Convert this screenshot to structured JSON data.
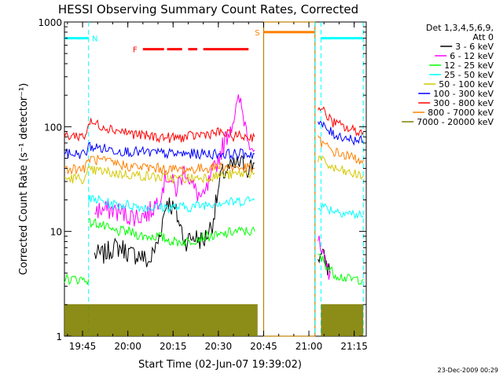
{
  "chart_data": {
    "type": "line",
    "title": "HESSI Observing Summary Count Rates, Corrected",
    "xlabel": "Start Time (02-Jun-07 19:39:02)",
    "ylabel": "Corrected Count Rate (s⁻¹ detector⁻¹)",
    "y_scale": "log",
    "ylim": [
      1,
      1000
    ],
    "xlim": [
      "19:39",
      "21:19"
    ],
    "x_ticks": [
      "19:45",
      "20:00",
      "20:15",
      "20:30",
      "20:45",
      "21:00",
      "21:15"
    ],
    "y_ticks": [
      "1",
      "10",
      "100",
      "1000"
    ],
    "grid": false,
    "legend_placement": "top-right",
    "legend_header": [
      "Det 1,3,4,5,6,9,",
      "Att 0"
    ],
    "footer_date": "23-Dec-2009 00:29",
    "series": [
      {
        "name": "3 - 6 keV",
        "color": "#000000",
        "segments": [
          {
            "x": [
              "19:49",
              "19:52",
              "19:55",
              "19:58",
              "20:01",
              "20:04",
              "20:07",
              "20:10",
              "20:13",
              "20:16",
              "20:19",
              "20:22",
              "20:25",
              "20:28",
              "20:31",
              "20:34",
              "20:37",
              "20:40",
              "20:42"
            ],
            "y": [
              6,
              6,
              7,
              7,
              6,
              6,
              5,
              8,
              20,
              15,
              8,
              9,
              8,
              12,
              35,
              40,
              45,
              40,
              45
            ]
          },
          {
            "x": [
              "21:03",
              "21:05",
              "21:07"
            ],
            "y": [
              6,
              5.5,
              4
            ]
          }
        ]
      },
      {
        "name": "6 - 12 keV",
        "color": "#ff00ff",
        "segments": [
          {
            "x": [
              "19:49",
              "19:52",
              "19:55",
              "19:58",
              "20:01",
              "20:04",
              "20:07",
              "20:10",
              "20:13",
              "20:16",
              "20:19",
              "20:22",
              "20:25",
              "20:28",
              "20:31",
              "20:34",
              "20:37",
              "20:40",
              "20:42"
            ],
            "y": [
              16,
              16,
              16,
              15,
              14,
              14,
              15,
              20,
              35,
              25,
              40,
              25,
              20,
              35,
              60,
              100,
              180,
              80,
              60
            ]
          },
          {
            "x": [
              "21:03",
              "21:05",
              "21:07"
            ],
            "y": [
              8,
              5,
              4
            ]
          }
        ]
      },
      {
        "name": "12 - 25 keV",
        "color": "#00ff00",
        "segments": [
          {
            "x": [
              "19:39",
              "19:47"
            ],
            "y": [
              3.5,
              3.5
            ]
          },
          {
            "x": [
              "19:47",
              "19:50",
              "19:55",
              "20:00",
              "20:05",
              "20:10",
              "20:15",
              "20:20",
              "20:25",
              "20:30",
              "20:35",
              "20:40",
              "20:42"
            ],
            "y": [
              12,
              12,
              10,
              10,
              9,
              9,
              8,
              8,
              9,
              9,
              10,
              10,
              10
            ]
          },
          {
            "x": [
              "21:03",
              "21:08",
              "21:13",
              "21:18"
            ],
            "y": [
              6,
              4,
              3.5,
              3.5
            ]
          }
        ]
      },
      {
        "name": "25 - 50 keV",
        "color": "#00ffff",
        "segments": [
          {
            "x": [
              "19:47",
              "19:50",
              "19:55",
              "20:00",
              "20:05",
              "20:10",
              "20:15",
              "20:20",
              "20:25",
              "20:30",
              "20:35",
              "20:40",
              "20:42"
            ],
            "y": [
              20,
              20,
              18,
              18,
              17,
              17,
              17,
              17,
              18,
              19,
              19,
              20,
              20
            ]
          },
          {
            "x": [
              "21:03",
              "21:08",
              "21:13",
              "21:18"
            ],
            "y": [
              18,
              16,
              15,
              14
            ]
          }
        ]
      },
      {
        "name": "50 - 100 keV",
        "color": "#d4c900",
        "segments": [
          {
            "x": [
              "19:39",
              "19:46",
              "19:47",
              "19:50",
              "19:55",
              "20:00",
              "20:05",
              "20:10",
              "20:15",
              "20:20",
              "20:25",
              "20:30",
              "20:35",
              "20:40",
              "20:42"
            ],
            "y": [
              32,
              32,
              38,
              38,
              36,
              35,
              34,
              33,
              32,
              32,
              33,
              34,
              35,
              36,
              36
            ]
          },
          {
            "x": [
              "21:03",
              "21:08",
              "21:13",
              "21:18"
            ],
            "y": [
              50,
              40,
              36,
              34
            ]
          }
        ]
      },
      {
        "name": "100 - 300 keV",
        "color": "#0000ff",
        "segments": [
          {
            "x": [
              "19:39",
              "19:46",
              "19:47",
              "19:50",
              "19:55",
              "20:00",
              "20:05",
              "20:10",
              "20:15",
              "20:20",
              "20:25",
              "20:30",
              "20:35",
              "20:40",
              "20:42"
            ],
            "y": [
              55,
              55,
              65,
              63,
              60,
              58,
              57,
              56,
              55,
              55,
              55,
              55,
              55,
              55,
              55
            ]
          },
          {
            "x": [
              "21:03",
              "21:08",
              "21:13",
              "21:18"
            ],
            "y": [
              110,
              85,
              78,
              72
            ]
          }
        ]
      },
      {
        "name": "300 - 800 keV",
        "color": "#ff0000",
        "segments": [
          {
            "x": [
              "19:39",
              "19:46",
              "19:47",
              "19:50",
              "19:55",
              "20:00",
              "20:05",
              "20:10",
              "20:15",
              "20:20",
              "20:25",
              "20:30",
              "20:35",
              "20:40",
              "20:42"
            ],
            "y": [
              82,
              82,
              110,
              105,
              95,
              88,
              82,
              80,
              78,
              80,
              85,
              88,
              82,
              80,
              80
            ]
          },
          {
            "x": [
              "21:03",
              "21:08",
              "21:13",
              "21:18"
            ],
            "y": [
              160,
              110,
              95,
              88
            ]
          }
        ]
      },
      {
        "name": "800 - 7000 keV",
        "color": "#ff8000",
        "segments": [
          {
            "x": [
              "19:39",
              "19:46",
              "19:47",
              "19:50",
              "19:55",
              "20:00",
              "20:05",
              "20:10",
              "20:15",
              "20:20",
              "20:25",
              "20:30",
              "20:35",
              "20:40",
              "20:42"
            ],
            "y": [
              40,
              40,
              50,
              48,
              45,
              42,
              41,
              40,
              39,
              39,
              40,
              42,
              41,
              40,
              40
            ]
          },
          {
            "x": [
              "21:03",
              "21:08",
              "21:13",
              "21:18"
            ],
            "y": [
              75,
              58,
              52,
              48
            ]
          }
        ]
      },
      {
        "name": "7000 - 20000 keV",
        "color": "#808000",
        "segments": [
          {
            "x": [
              "19:39",
              "19:50",
              "20:00",
              "20:10",
              "20:20",
              "20:30",
              "20:40",
              "20:43"
            ],
            "y": [
              2,
              2,
              2,
              2,
              2,
              2,
              2,
              2
            ]
          },
          {
            "x": [
              "21:04",
              "21:10",
              "21:18"
            ],
            "y": [
              2,
              2,
              2
            ]
          }
        ]
      }
    ],
    "annotations": [
      {
        "label": "N",
        "color": "#00ffff",
        "level": 700,
        "bars": [
          {
            "x0": "19:39",
            "x1": "19:47"
          },
          {
            "x0": "21:04",
            "x1": "21:18"
          }
        ]
      },
      {
        "label": "F",
        "color": "#ff0000",
        "level": 550,
        "bars": [
          {
            "x0": "20:05",
            "x1": "20:12"
          },
          {
            "x0": "20:13",
            "x1": "20:18"
          },
          {
            "x0": "20:20",
            "x1": "20:23"
          },
          {
            "x0": "20:25",
            "x1": "20:40"
          }
        ]
      },
      {
        "label": "S",
        "color": "#ff8000",
        "level": 800,
        "bars": [
          {
            "x0": "20:45",
            "x1": "21:02"
          }
        ]
      }
    ],
    "saa_block": {
      "x0": "20:45",
      "x1": "21:02",
      "color": "#c08000"
    },
    "dashed_lines": [
      {
        "x": "19:47",
        "color": "#00ffff"
      },
      {
        "x": "21:02",
        "color": "#00ffff"
      },
      {
        "x": "21:04",
        "color": "#00ffff"
      },
      {
        "x": "21:18",
        "color": "#00ffff"
      }
    ]
  }
}
